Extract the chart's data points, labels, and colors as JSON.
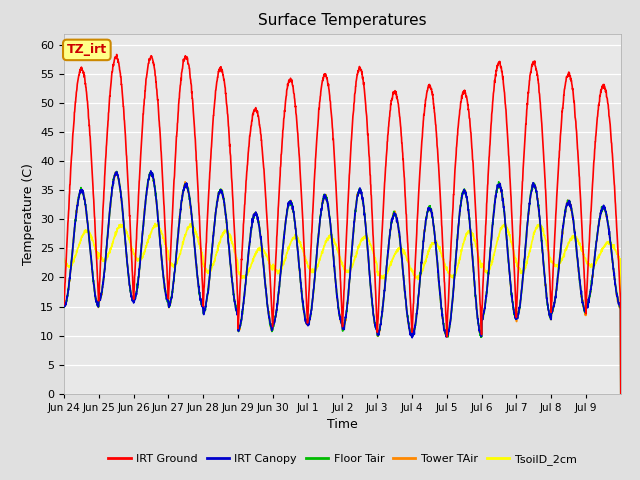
{
  "title": "Surface Temperatures",
  "xlabel": "Time",
  "ylabel": "Temperature (C)",
  "ylim": [
    0,
    62
  ],
  "yticks": [
    0,
    5,
    10,
    15,
    20,
    25,
    30,
    35,
    40,
    45,
    50,
    55,
    60
  ],
  "fig_bg_color": "#e0e0e0",
  "plot_bg_color": "#e8e8e8",
  "series": {
    "IRT Ground": {
      "color": "#ff0000",
      "lw": 1.2
    },
    "IRT Canopy": {
      "color": "#0000cc",
      "lw": 1.2
    },
    "Floor Tair": {
      "color": "#00bb00",
      "lw": 1.2
    },
    "Tower TAir": {
      "color": "#ff8800",
      "lw": 1.2
    },
    "TsoilD_2cm": {
      "color": "#ffff00",
      "lw": 1.2
    }
  },
  "annotation": {
    "text": "TZ_irt",
    "facecolor": "#ffff88",
    "edgecolor": "#cc8800",
    "textcolor": "#cc0000",
    "fontsize": 9,
    "fontweight": "bold"
  },
  "total_days": 16,
  "tick_labels": [
    "Jun 24",
    "Jun 25",
    "Jun 26",
    "Jun 27",
    "Jun 28",
    "Jun 29",
    "Jun 30",
    "Jul 1",
    "Jul 2",
    "Jul 3",
    "Jul 4",
    "Jul 5",
    "Jul 6",
    "Jul 7",
    "Jul 8",
    "Jul 9"
  ],
  "irt_ground_peaks": [
    56,
    58,
    58,
    58,
    56,
    49,
    54,
    55,
    56,
    52,
    53,
    52,
    57,
    57,
    55,
    53
  ],
  "irt_ground_troughs": [
    15,
    16,
    16,
    16,
    15,
    11,
    12,
    12,
    11,
    10,
    10,
    10,
    13,
    14,
    14,
    15
  ],
  "other_peaks": [
    35,
    38,
    38,
    36,
    35,
    31,
    33,
    34,
    35,
    31,
    32,
    35,
    36,
    36,
    33,
    32
  ],
  "other_troughs": [
    15,
    16,
    16,
    15,
    14,
    11,
    12,
    12,
    11,
    10,
    10,
    10,
    13,
    13,
    14,
    15
  ],
  "tsoil_peaks": [
    28,
    29,
    29,
    29,
    28,
    25,
    27,
    27,
    27,
    25,
    26,
    28,
    29,
    29,
    27,
    26
  ],
  "tsoil_troughs": [
    22,
    23,
    23,
    22,
    21,
    20,
    21,
    21,
    21,
    20,
    20,
    20,
    21,
    21,
    22,
    22
  ]
}
